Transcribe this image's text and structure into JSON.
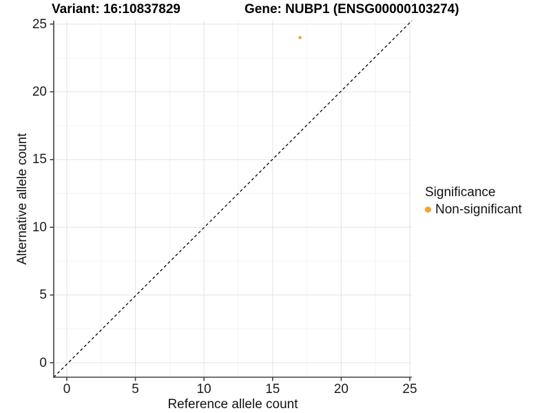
{
  "chart_data": {
    "type": "scatter",
    "title_variant": "Variant: 16:10837829",
    "title_gene": "Gene: NUBP1 (ENSG00000103274)",
    "xlabel": "Reference allele count",
    "ylabel": "Alternative allele count",
    "x_ticks": [
      0,
      5,
      10,
      15,
      20,
      25
    ],
    "y_ticks": [
      0,
      5,
      10,
      15,
      20,
      25
    ],
    "xlim": [
      -1,
      25.2
    ],
    "ylim": [
      -1.1,
      25.3
    ],
    "grid": "major every 5, minor every 2.5, shown",
    "points": [
      {
        "x": 17,
        "y": 24,
        "group": "Non-significant"
      }
    ],
    "identity_line": {
      "equation": "y = x",
      "style": "dashed",
      "color": "#000000"
    },
    "legend": {
      "title": "Significance",
      "position": "right",
      "items": [
        {
          "label": "Non-significant",
          "color": "#F9A229"
        }
      ]
    },
    "colors": {
      "point": "#F9A229",
      "grid_major": "#E5E5E5",
      "grid_minor": "#F2F2F2",
      "axis_line": "#404040",
      "text": "#1a1a1a"
    }
  }
}
